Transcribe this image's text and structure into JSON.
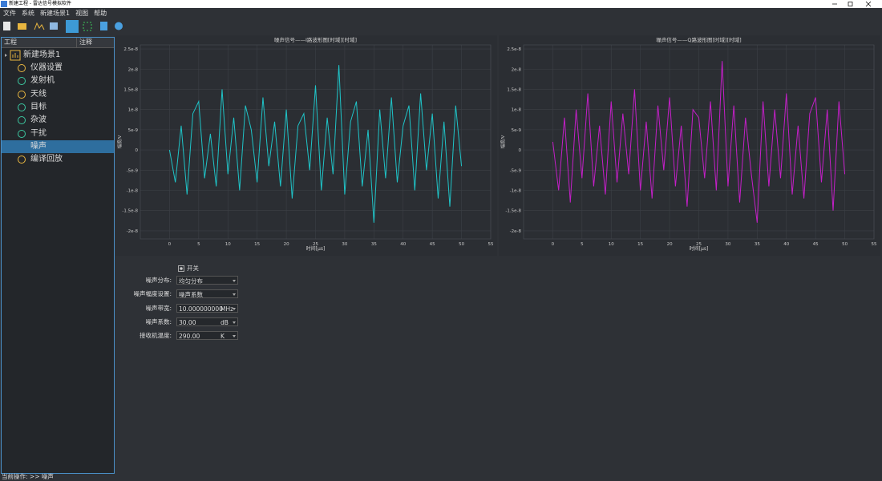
{
  "window": {
    "title": "新建工程 - 雷达信号模拟软件"
  },
  "menu": [
    "文件",
    "系统",
    "新建场景1",
    "视图",
    "帮助"
  ],
  "tree": {
    "headers": [
      "工程",
      "注释"
    ],
    "root": "新建场景1",
    "items": [
      "仪器设置",
      "发射机",
      "天线",
      "目标",
      "杂波",
      "干扰",
      "噪声",
      "编译回放"
    ],
    "selected": 6
  },
  "chart_data": [
    {
      "type": "line",
      "title": "噪声信号——I路波形图[时域][时域]",
      "xlabel": "时间[μs]",
      "ylabel": "幅度/V",
      "x": [
        0,
        1,
        2,
        3,
        4,
        5,
        6,
        7,
        8,
        9,
        10,
        11,
        12,
        13,
        14,
        15,
        16,
        17,
        18,
        19,
        20,
        21,
        22,
        23,
        24,
        25,
        26,
        27,
        28,
        29,
        30,
        31,
        32,
        33,
        34,
        35,
        36,
        37,
        38,
        39,
        40,
        41,
        42,
        43,
        44,
        45,
        46,
        47,
        48,
        49,
        50
      ],
      "series": [
        {
          "color": "#1fc4c8",
          "values": [
            0,
            -8e-09,
            6e-09,
            -1.1e-08,
            9e-09,
            1.2e-08,
            -7e-09,
            4e-09,
            -9e-09,
            1.5e-08,
            -6e-09,
            8e-09,
            -1e-08,
            1.1e-08,
            5e-09,
            -8e-09,
            1.3e-08,
            -4e-09,
            7e-09,
            -9e-09,
            1e-08,
            -1.2e-08,
            6e-09,
            9e-09,
            -5e-09,
            1.6e-08,
            -1e-08,
            8e-09,
            -6e-09,
            2.1e-08,
            -1.1e-08,
            7e-09,
            1.2e-08,
            -9e-09,
            5e-09,
            -1.8e-08,
            1e-08,
            -7e-09,
            1.3e-08,
            -8e-09,
            6e-09,
            1.1e-08,
            -1e-08,
            1.4e-08,
            -5e-09,
            9e-09,
            -1.2e-08,
            7e-09,
            -1.4e-08,
            1.1e-08,
            -4e-09
          ]
        }
      ],
      "xlim": [
        -5,
        55
      ],
      "xticks": [
        0,
        5,
        10,
        15,
        20,
        25,
        30,
        35,
        40,
        45,
        50,
        55
      ],
      "ylim": [
        -2.2e-08,
        2.6e-08
      ],
      "yticks": [
        -2e-08,
        -1.5e-08,
        -1e-08,
        -5e-09,
        0,
        5e-09,
        1e-08,
        1.5e-08,
        2e-08,
        2.5e-08
      ],
      "grid": true
    },
    {
      "type": "line",
      "title": "噪声信号——Q路波形图[时域][时域]",
      "xlabel": "时间[μs]",
      "ylabel": "幅度/V",
      "x": [
        0,
        1,
        2,
        3,
        4,
        5,
        6,
        7,
        8,
        9,
        10,
        11,
        12,
        13,
        14,
        15,
        16,
        17,
        18,
        19,
        20,
        21,
        22,
        23,
        24,
        25,
        26,
        27,
        28,
        29,
        30,
        31,
        32,
        33,
        34,
        35,
        36,
        37,
        38,
        39,
        40,
        41,
        42,
        43,
        44,
        45,
        46,
        47,
        48,
        49,
        50
      ],
      "series": [
        {
          "color": "#c41fc8",
          "values": [
            2e-09,
            -1e-08,
            8e-09,
            -1.3e-08,
            1e-08,
            -7e-09,
            1.4e-08,
            -9e-09,
            6e-09,
            -1.1e-08,
            1.2e-08,
            -8e-09,
            9e-09,
            -6e-09,
            1.5e-08,
            -1e-08,
            7e-09,
            -1.2e-08,
            1.1e-08,
            -5e-09,
            1.3e-08,
            -9e-09,
            6e-09,
            -1.4e-08,
            1e-08,
            8e-09,
            -7e-09,
            1.2e-08,
            -1e-08,
            2.2e-08,
            -9e-09,
            1.1e-08,
            -1.3e-08,
            8e-09,
            -6e-09,
            -1.8e-08,
            1.2e-08,
            -9e-09,
            1e-08,
            -7e-09,
            1.4e-08,
            -1.1e-08,
            6e-09,
            -1.2e-08,
            9e-09,
            1.3e-08,
            -8e-09,
            1e-08,
            -1.5e-08,
            1.2e-08,
            -6e-09
          ]
        }
      ],
      "xlim": [
        -5,
        55
      ],
      "xticks": [
        0,
        5,
        10,
        15,
        20,
        25,
        30,
        35,
        40,
        45,
        50,
        55
      ],
      "ylim": [
        -2.2e-08,
        2.6e-08
      ],
      "yticks": [
        -2e-08,
        -1.5e-08,
        -1e-08,
        -5e-09,
        0,
        5e-09,
        1e-08,
        1.5e-08,
        2e-08,
        2.5e-08
      ],
      "grid": true
    }
  ],
  "form": {
    "switch": "开关",
    "switch_checked": true,
    "fields": [
      {
        "label": "噪声分布:",
        "value": "均匀分布"
      },
      {
        "label": "噪声幅度设置:",
        "value": "噪声系数"
      },
      {
        "label": "噪声带宽:",
        "value": "10.000000000",
        "unit": "MHz"
      },
      {
        "label": "噪声系数:",
        "value": "30.00",
        "unit": "dB"
      },
      {
        "label": "接收机温度:",
        "value": "290.00",
        "unit": "K"
      }
    ]
  },
  "status": {
    "label": "当前操作:",
    "value": ">> 噪声"
  }
}
